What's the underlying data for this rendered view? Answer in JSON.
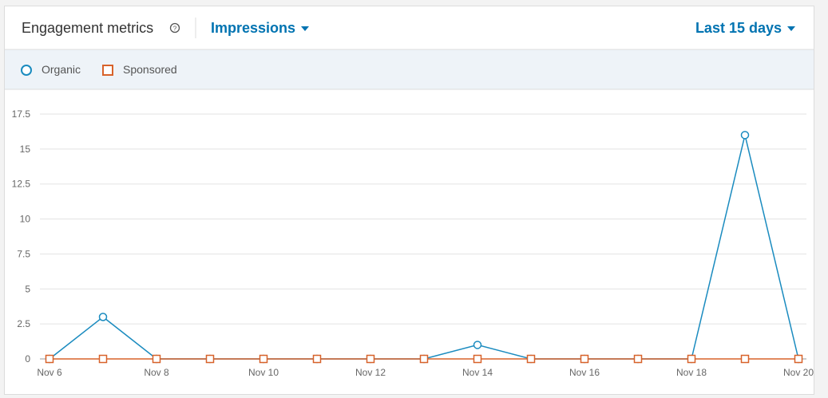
{
  "header": {
    "title": "Engagement metrics",
    "metric": "Impressions",
    "range": "Last 15 days"
  },
  "chart_data": {
    "type": "line",
    "categories": [
      "Nov 6",
      null,
      "Nov 8",
      null,
      "Nov 10",
      null,
      "Nov 12",
      null,
      "Nov 14",
      null,
      "Nov 16",
      null,
      "Nov 18",
      null,
      "Nov 20"
    ],
    "series": [
      {
        "name": "Organic",
        "color": "#1a8bbf",
        "marker": "circle",
        "values": [
          0,
          3,
          0,
          0,
          0,
          0,
          0,
          0,
          1,
          0,
          0,
          0,
          0,
          16,
          0
        ]
      },
      {
        "name": "Sponsored",
        "color": "#d8622a",
        "marker": "square",
        "values": [
          0,
          0,
          0,
          0,
          0,
          0,
          0,
          0,
          0,
          0,
          0,
          0,
          0,
          0,
          0
        ]
      }
    ],
    "ylim": [
      0,
      17.5
    ],
    "yticks": [
      0,
      2.5,
      5,
      7.5,
      10,
      12.5,
      15,
      17.5
    ],
    "grid": true
  }
}
